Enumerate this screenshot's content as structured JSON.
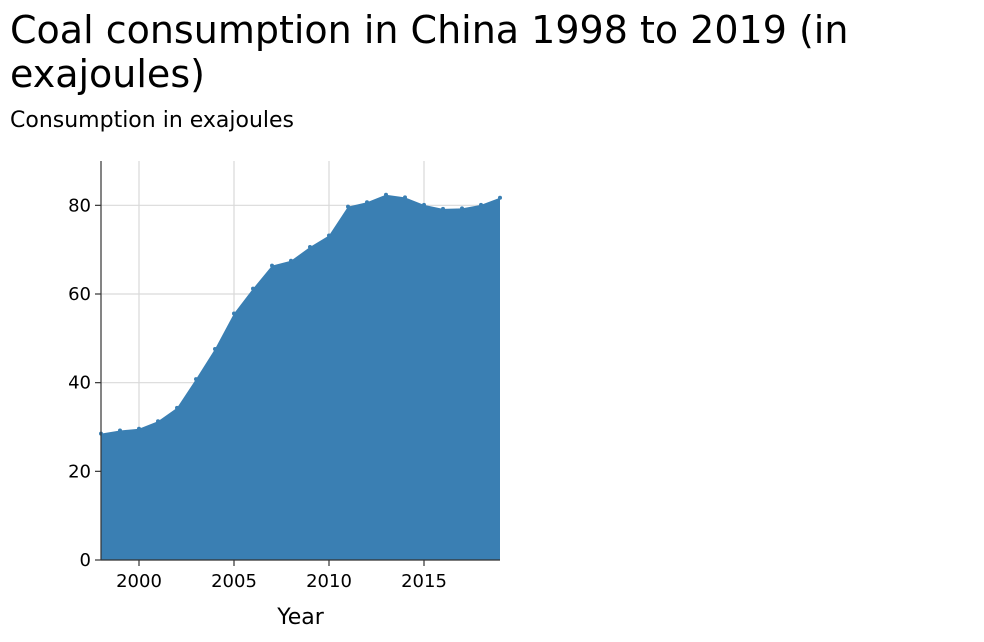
{
  "chart_data": {
    "type": "area",
    "title": "Coal consumption in China 1998 to 2019 (in exajoules)",
    "ylabel": "Consumption in exajoules",
    "xlabel": "Year",
    "xlim": [
      1998,
      2019
    ],
    "ylim": [
      0,
      90
    ],
    "xticks": [
      2000,
      2005,
      2010,
      2015
    ],
    "yticks": [
      0,
      20,
      40,
      60,
      80
    ],
    "grid": true,
    "color": "#3a7fb3",
    "x": [
      1998,
      1999,
      2000,
      2001,
      2002,
      2003,
      2004,
      2005,
      2006,
      2007,
      2008,
      2009,
      2010,
      2011,
      2012,
      2013,
      2014,
      2015,
      2016,
      2017,
      2018,
      2019
    ],
    "values": [
      28.5,
      29.2,
      29.6,
      31.3,
      34.3,
      40.8,
      47.6,
      55.6,
      61.2,
      66.4,
      67.5,
      70.6,
      73.2,
      79.7,
      80.7,
      82.4,
      81.8,
      80.1,
      79.2,
      79.3,
      80.1,
      81.7
    ]
  }
}
